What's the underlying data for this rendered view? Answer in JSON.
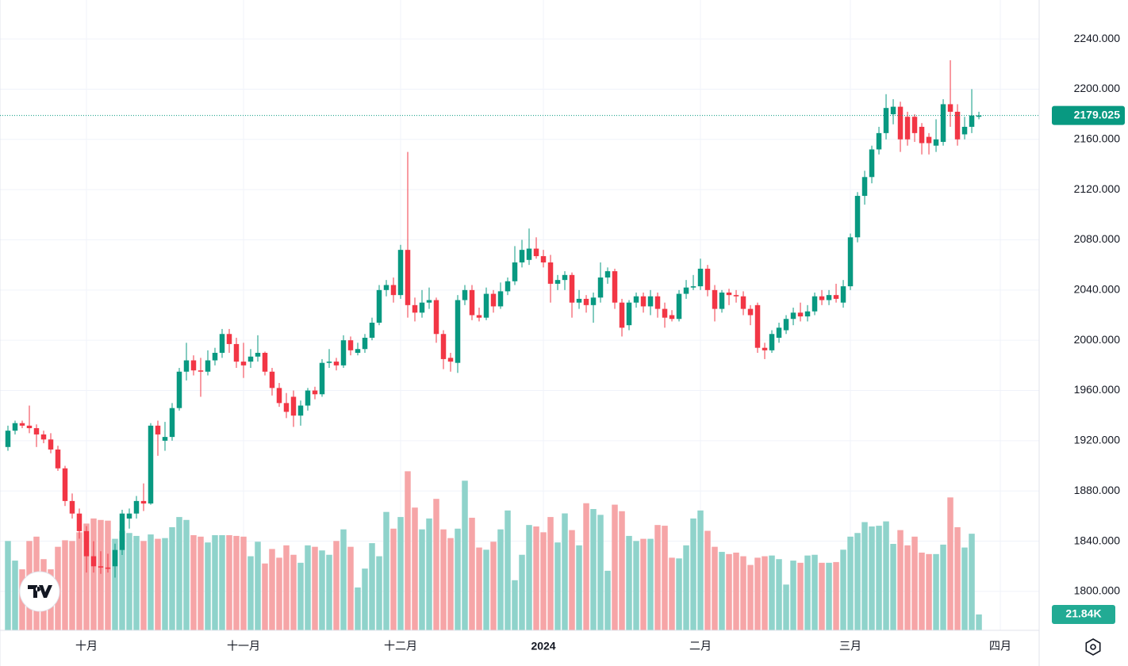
{
  "chart_data": {
    "type": "candlestick",
    "ohlc": [
      [
        1915,
        1932,
        1912,
        1928
      ],
      [
        1928,
        1936,
        1925,
        1934
      ],
      [
        1934,
        1936,
        1930,
        1932
      ],
      [
        1932,
        1948,
        1926,
        1930
      ],
      [
        1930,
        1933,
        1915,
        1925
      ],
      [
        1925,
        1928,
        1918,
        1921
      ],
      [
        1921,
        1926,
        1910,
        1913
      ],
      [
        1913,
        1916,
        1896,
        1898
      ],
      [
        1898,
        1900,
        1868,
        1872
      ],
      [
        1872,
        1878,
        1858,
        1862
      ],
      [
        1862,
        1866,
        1842,
        1848
      ],
      [
        1848,
        1852,
        1815,
        1828
      ],
      [
        1828,
        1840,
        1815,
        1820
      ],
      [
        1820,
        1832,
        1814,
        1819
      ],
      [
        1819,
        1830,
        1815,
        1818
      ],
      [
        1820,
        1838,
        1811,
        1833
      ],
      [
        1833,
        1865,
        1829,
        1862
      ],
      [
        1858,
        1866,
        1850,
        1862
      ],
      [
        1862,
        1876,
        1858,
        1872
      ],
      [
        1872,
        1886,
        1864,
        1870
      ],
      [
        1870,
        1934,
        1869,
        1932
      ],
      [
        1932,
        1936,
        1908,
        1925
      ],
      [
        1920,
        1935,
        1912,
        1923
      ],
      [
        1923,
        1950,
        1920,
        1946
      ],
      [
        1946,
        1978,
        1944,
        1975
      ],
      [
        1975,
        1998,
        1968,
        1984
      ],
      [
        1984,
        1988,
        1972,
        1976
      ],
      [
        1976,
        1986,
        1955,
        1975
      ],
      [
        1975,
        1992,
        1972,
        1984
      ],
      [
        1984,
        1994,
        1980,
        1990
      ],
      [
        1990,
        2009,
        1986,
        2005
      ],
      [
        2005,
        2009,
        1990,
        1997
      ],
      [
        1997,
        2002,
        1978,
        1983
      ],
      [
        1983,
        1998,
        1970,
        1980
      ],
      [
        1983,
        1993,
        1978,
        1987
      ],
      [
        1987,
        2004,
        1983,
        1990
      ],
      [
        1990,
        1991,
        1972,
        1975
      ],
      [
        1975,
        1978,
        1956,
        1962
      ],
      [
        1962,
        1966,
        1947,
        1950
      ],
      [
        1950,
        1958,
        1938,
        1943
      ],
      [
        1955,
        1960,
        1931,
        1940
      ],
      [
        1940,
        1952,
        1932,
        1948
      ],
      [
        1948,
        1962,
        1944,
        1960
      ],
      [
        1960,
        1963,
        1953,
        1957
      ],
      [
        1957,
        1985,
        1955,
        1982
      ],
      [
        1982,
        1993,
        1978,
        1983
      ],
      [
        1983,
        1986,
        1976,
        1980
      ],
      [
        1980,
        2004,
        1978,
        2000
      ],
      [
        2000,
        2003,
        1988,
        1992
      ],
      [
        1990,
        1998,
        1988,
        1993
      ],
      [
        1993,
        2005,
        1990,
        2002
      ],
      [
        2002,
        2018,
        2000,
        2014
      ],
      [
        2014,
        2044,
        2012,
        2040
      ],
      [
        2040,
        2048,
        2035,
        2044
      ],
      [
        2044,
        2050,
        2030,
        2036
      ],
      [
        2036,
        2076,
        2033,
        2072
      ],
      [
        2072,
        2150,
        2018,
        2028
      ],
      [
        2028,
        2034,
        2015,
        2022
      ],
      [
        2022,
        2040,
        2018,
        2030
      ],
      [
        2030,
        2042,
        2025,
        2032
      ],
      [
        2032,
        2034,
        1998,
        2005
      ],
      [
        2005,
        2008,
        1977,
        1985
      ],
      [
        1986,
        1990,
        1975,
        1983
      ],
      [
        1982,
        2036,
        1974,
        2032
      ],
      [
        2032,
        2044,
        2028,
        2040
      ],
      [
        2040,
        2044,
        2016,
        2020
      ],
      [
        2020,
        2026,
        2015,
        2018
      ],
      [
        2018,
        2042,
        2016,
        2037
      ],
      [
        2037,
        2040,
        2022,
        2027
      ],
      [
        2027,
        2046,
        2025,
        2039
      ],
      [
        2039,
        2050,
        2036,
        2047
      ],
      [
        2047,
        2075,
        2044,
        2062
      ],
      [
        2062,
        2080,
        2058,
        2072
      ],
      [
        2064,
        2089,
        2060,
        2073
      ],
      [
        2073,
        2082,
        2065,
        2067
      ],
      [
        2067,
        2072,
        2058,
        2062
      ],
      [
        2062,
        2068,
        2030,
        2045
      ],
      [
        2045,
        2052,
        2040,
        2048
      ],
      [
        2048,
        2055,
        2040,
        2052
      ],
      [
        2052,
        2054,
        2018,
        2030
      ],
      [
        2030,
        2040,
        2025,
        2033
      ],
      [
        2033,
        2036,
        2022,
        2028
      ],
      [
        2028,
        2038,
        2014,
        2034
      ],
      [
        2034,
        2062,
        2030,
        2050
      ],
      [
        2050,
        2058,
        2045,
        2055
      ],
      [
        2055,
        2057,
        2025,
        2030
      ],
      [
        2030,
        2033,
        2003,
        2010
      ],
      [
        2012,
        2032,
        2008,
        2030
      ],
      [
        2030,
        2038,
        2026,
        2035
      ],
      [
        2035,
        2038,
        2022,
        2027
      ],
      [
        2027,
        2040,
        2020,
        2035
      ],
      [
        2035,
        2038,
        2018,
        2025
      ],
      [
        2025,
        2030,
        2010,
        2018
      ],
      [
        2020,
        2024,
        2015,
        2017
      ],
      [
        2017,
        2040,
        2015,
        2037
      ],
      [
        2037,
        2048,
        2033,
        2042
      ],
      [
        2042,
        2052,
        2040,
        2043
      ],
      [
        2043,
        2065,
        2040,
        2057
      ],
      [
        2057,
        2060,
        2035,
        2040
      ],
      [
        2040,
        2044,
        2015,
        2025
      ],
      [
        2025,
        2040,
        2022,
        2038
      ],
      [
        2038,
        2041,
        2028,
        2036
      ],
      [
        2036,
        2040,
        2030,
        2035
      ],
      [
        2035,
        2039,
        2020,
        2025
      ],
      [
        2025,
        2028,
        2012,
        2020
      ],
      [
        2028,
        2030,
        1990,
        1994
      ],
      [
        1994,
        1998,
        1985,
        1992
      ],
      [
        1992,
        2008,
        1990,
        2005
      ],
      [
        2002,
        2014,
        1998,
        2010
      ],
      [
        2008,
        2020,
        2005,
        2017
      ],
      [
        2017,
        2026,
        2012,
        2022
      ],
      [
        2022,
        2030,
        2015,
        2019
      ],
      [
        2019,
        2028,
        2015,
        2023
      ],
      [
        2023,
        2038,
        2020,
        2035
      ],
      [
        2035,
        2040,
        2028,
        2032
      ],
      [
        2032,
        2040,
        2028,
        2036
      ],
      [
        2036,
        2045,
        2030,
        2033
      ],
      [
        2030,
        2048,
        2026,
        2043
      ],
      [
        2043,
        2085,
        2040,
        2082
      ],
      [
        2082,
        2118,
        2078,
        2115
      ],
      [
        2115,
        2135,
        2108,
        2130
      ],
      [
        2130,
        2155,
        2125,
        2152
      ],
      [
        2152,
        2170,
        2148,
        2165
      ],
      [
        2165,
        2196,
        2160,
        2185
      ],
      [
        2180,
        2192,
        2172,
        2186
      ],
      [
        2186,
        2190,
        2150,
        2160
      ],
      [
        2178,
        2182,
        2155,
        2160
      ],
      [
        2178,
        2180,
        2158,
        2165
      ],
      [
        2170,
        2173,
        2148,
        2157
      ],
      [
        2162,
        2165,
        2148,
        2157
      ],
      [
        2155,
        2176,
        2150,
        2160
      ],
      [
        2158,
        2192,
        2155,
        2188
      ],
      [
        2188,
        2223,
        2170,
        2182
      ],
      [
        2182,
        2188,
        2155,
        2160
      ],
      [
        2164,
        2178,
        2160,
        2170
      ],
      [
        2170,
        2200,
        2165,
        2179
      ],
      [
        2178,
        2182,
        2176,
        2179.025
      ]
    ],
    "volume": [
      123,
      96,
      84,
      123,
      129,
      98,
      84,
      115,
      124,
      123,
      135,
      147,
      154,
      152,
      151,
      126,
      137,
      134,
      130,
      123,
      132,
      126,
      127,
      142,
      156,
      152,
      131,
      129,
      121,
      131,
      131,
      131,
      130,
      129,
      102,
      122,
      92,
      112,
      100,
      117,
      104,
      93,
      117,
      115,
      110,
      104,
      123,
      139,
      115,
      59,
      85,
      120,
      102,
      163,
      140,
      156,
      219,
      169,
      139,
      154,
      181,
      139,
      127,
      140,
      206,
      155,
      114,
      111,
      122,
      139,
      165,
      69,
      104,
      145,
      143,
      135,
      156,
      121,
      161,
      138,
      117,
      175,
      167,
      159,
      82,
      173,
      164,
      130,
      123,
      126,
      126,
      145,
      144,
      100,
      99,
      117,
      154,
      165,
      137,
      115,
      108,
      105,
      107,
      102,
      90,
      100,
      102,
      103,
      98,
      63,
      96,
      93,
      103,
      104,
      93,
      93,
      94,
      111,
      129,
      134,
      149,
      143,
      144,
      150,
      119,
      138,
      117,
      129,
      107,
      105,
      105,
      118,
      183,
      142,
      114,
      133,
      21.84
    ],
    "volume_label": "21.84K",
    "volume_lim": [
      0,
      262
    ],
    "up_color": "#089981",
    "down_color": "#f23645",
    "volume_up_color": "#8fd3cb",
    "volume_down_color": "#f6a5a7",
    "xlim": [
      -1.11,
      144.44
    ],
    "xticks": [
      {
        "value": 11,
        "label": "十月"
      },
      {
        "value": 33,
        "label": "十一月"
      },
      {
        "value": 55,
        "label": "十二月"
      },
      {
        "value": 75,
        "label": "2024"
      },
      {
        "value": 97,
        "label": "二月"
      },
      {
        "value": 118,
        "label": "三月"
      },
      {
        "value": 139,
        "label": "四月"
      }
    ],
    "ylim": [
      1769,
      2271
    ],
    "yticks": [
      {
        "value": 1800,
        "label": "1800.000"
      },
      {
        "value": 1840,
        "label": "1840.000"
      },
      {
        "value": 1880,
        "label": "1880.000"
      },
      {
        "value": 1920,
        "label": "1920.000"
      },
      {
        "value": 1960,
        "label": "1960.000"
      },
      {
        "value": 2000,
        "label": "2000.000"
      },
      {
        "value": 2040,
        "label": "2040.000"
      },
      {
        "value": 2080,
        "label": "2080.000"
      },
      {
        "value": 2120,
        "label": "2120.000"
      },
      {
        "value": 2160,
        "label": "2160.000"
      },
      {
        "value": 2200,
        "label": "2200.000"
      },
      {
        "value": 2240,
        "label": "2240.000"
      }
    ],
    "grid": true
  }
}
